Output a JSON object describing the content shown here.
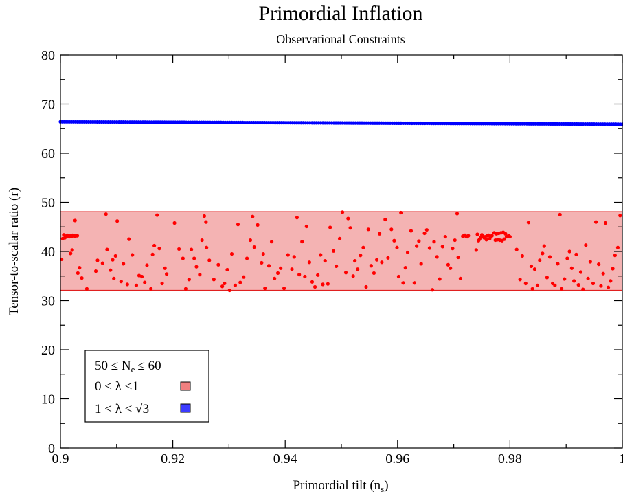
{
  "chart_data": {
    "type": "scatter",
    "title": "Primordial Inflation",
    "subtitle": "Observational Constraints",
    "xlabel": "Primordial tilt (n",
    "xlabel_sub": "s",
    "xlabel_close": ")",
    "ylabel": "Tensor-to-scalar ratio (r)",
    "xlim": [
      0.9,
      1.0
    ],
    "ylim": [
      0,
      80
    ],
    "x_ticks": [
      "0.9",
      "0.92",
      "0.94",
      "0.96",
      "0.98",
      "1"
    ],
    "x_tick_values": [
      0.9,
      0.92,
      0.94,
      0.96,
      0.98,
      1.0
    ],
    "y_ticks": [
      "0",
      "10",
      "20",
      "30",
      "40",
      "50",
      "60",
      "70",
      "80"
    ],
    "y_tick_values": [
      0,
      10,
      20,
      30,
      40,
      50,
      60,
      70,
      80
    ],
    "grid": false,
    "legend": {
      "placement": "bottom-left",
      "header": "50 ≤ N",
      "header_sub": "e",
      "header_tail": "≤ 60",
      "entries": [
        {
          "label": "0 < λ <1",
          "color": "#f08080"
        },
        {
          "label": "1 < λ < √3",
          "color": "#3b3bff"
        }
      ]
    },
    "band": {
      "y_min": 32.1,
      "y_max": 48.1,
      "x_min": 0.9,
      "x_max": 1.0,
      "fill": "#f4b3b3",
      "edge": "#e02020"
    },
    "series": [
      {
        "name": "0 < λ <1",
        "color": "#ff0000",
        "points": [
          [
            0.9002,
            38.4
          ],
          [
            0.9004,
            42.6
          ],
          [
            0.9006,
            43.4
          ],
          [
            0.9008,
            42.8
          ],
          [
            0.901,
            43.0
          ],
          [
            0.9012,
            43.3
          ],
          [
            0.9014,
            43.1
          ],
          [
            0.9016,
            43.0
          ],
          [
            0.9018,
            43.2
          ],
          [
            0.902,
            43.1
          ],
          [
            0.9022,
            43.3
          ],
          [
            0.9024,
            43.2
          ],
          [
            0.9026,
            43.1
          ],
          [
            0.9028,
            43.2
          ],
          [
            0.903,
            43.2
          ],
          [
            0.9018,
            39.6
          ],
          [
            0.9021,
            40.3
          ],
          [
            0.9026,
            46.3
          ],
          [
            0.9031,
            35.6
          ],
          [
            0.9034,
            36.7
          ],
          [
            0.9038,
            34.6
          ],
          [
            0.9047,
            32.4
          ],
          [
            0.9063,
            36.0
          ],
          [
            0.9066,
            38.2
          ],
          [
            0.9075,
            37.6
          ],
          [
            0.9081,
            47.6
          ],
          [
            0.9083,
            40.4
          ],
          [
            0.9089,
            36.2
          ],
          [
            0.9093,
            38.3
          ],
          [
            0.9095,
            34.5
          ],
          [
            0.9098,
            39.1
          ],
          [
            0.9101,
            46.2
          ],
          [
            0.9108,
            33.9
          ],
          [
            0.9112,
            37.5
          ],
          [
            0.9119,
            33.3
          ],
          [
            0.9122,
            42.5
          ],
          [
            0.9128,
            39.3
          ],
          [
            0.9135,
            33.1
          ],
          [
            0.914,
            35.1
          ],
          [
            0.9145,
            34.9
          ],
          [
            0.915,
            33.7
          ],
          [
            0.9154,
            37.2
          ],
          [
            0.9161,
            32.4
          ],
          [
            0.9164,
            39.4
          ],
          [
            0.9167,
            41.2
          ],
          [
            0.9172,
            47.4
          ],
          [
            0.9176,
            40.6
          ],
          [
            0.9181,
            33.5
          ],
          [
            0.9186,
            36.6
          ],
          [
            0.9189,
            35.4
          ],
          [
            0.9203,
            45.8
          ],
          [
            0.9211,
            40.5
          ],
          [
            0.9218,
            38.6
          ],
          [
            0.9223,
            32.4
          ],
          [
            0.9229,
            34.3
          ],
          [
            0.9233,
            40.4
          ],
          [
            0.9238,
            38.6
          ],
          [
            0.9242,
            36.9
          ],
          [
            0.9248,
            35.3
          ],
          [
            0.9252,
            42.3
          ],
          [
            0.9256,
            47.2
          ],
          [
            0.9259,
            46.0
          ],
          [
            0.926,
            40.8
          ],
          [
            0.9265,
            38.2
          ],
          [
            0.9273,
            34.3
          ],
          [
            0.9281,
            37.3
          ],
          [
            0.9288,
            32.9
          ],
          [
            0.9292,
            33.5
          ],
          [
            0.9297,
            36.3
          ],
          [
            0.9301,
            32.1
          ],
          [
            0.9305,
            39.5
          ],
          [
            0.9311,
            33.1
          ],
          [
            0.9316,
            45.5
          ],
          [
            0.932,
            33.7
          ],
          [
            0.9326,
            34.8
          ],
          [
            0.9332,
            38.6
          ],
          [
            0.9338,
            42.3
          ],
          [
            0.9342,
            47.1
          ],
          [
            0.9345,
            40.9
          ],
          [
            0.9351,
            45.4
          ],
          [
            0.9358,
            37.7
          ],
          [
            0.9361,
            39.5
          ],
          [
            0.9364,
            32.5
          ],
          [
            0.9371,
            37.1
          ],
          [
            0.9376,
            42.0
          ],
          [
            0.9381,
            34.5
          ],
          [
            0.9387,
            35.6
          ],
          [
            0.9392,
            36.6
          ],
          [
            0.9398,
            32.5
          ],
          [
            0.9405,
            39.3
          ],
          [
            0.9412,
            36.4
          ],
          [
            0.9416,
            38.9
          ],
          [
            0.9421,
            46.9
          ],
          [
            0.9425,
            35.3
          ],
          [
            0.943,
            42.0
          ],
          [
            0.9435,
            34.9
          ],
          [
            0.9438,
            45.1
          ],
          [
            0.9443,
            37.8
          ],
          [
            0.9448,
            33.8
          ],
          [
            0.9453,
            32.8
          ],
          [
            0.9458,
            35.2
          ],
          [
            0.9463,
            39.3
          ],
          [
            0.9467,
            33.3
          ],
          [
            0.9471,
            38.1
          ],
          [
            0.9476,
            33.4
          ],
          [
            0.948,
            44.9
          ],
          [
            0.9486,
            40.1
          ],
          [
            0.9491,
            37.0
          ],
          [
            0.9497,
            42.6
          ],
          [
            0.9502,
            48.0
          ],
          [
            0.9508,
            35.7
          ],
          [
            0.9512,
            46.7
          ],
          [
            0.9516,
            44.8
          ],
          [
            0.9521,
            35.0
          ],
          [
            0.9524,
            38.1
          ],
          [
            0.9529,
            36.4
          ],
          [
            0.9534,
            39.2
          ],
          [
            0.9539,
            40.8
          ],
          [
            0.9544,
            32.8
          ],
          [
            0.9548,
            44.5
          ],
          [
            0.9553,
            37.1
          ],
          [
            0.9558,
            35.6
          ],
          [
            0.9563,
            38.3
          ],
          [
            0.9568,
            43.6
          ],
          [
            0.9572,
            37.8
          ],
          [
            0.9578,
            46.5
          ],
          [
            0.9583,
            38.7
          ],
          [
            0.9589,
            44.5
          ],
          [
            0.9594,
            42.2
          ],
          [
            0.9599,
            40.8
          ],
          [
            0.9602,
            34.9
          ],
          [
            0.9606,
            47.9
          ],
          [
            0.961,
            33.6
          ],
          [
            0.9614,
            36.7
          ],
          [
            0.9618,
            39.8
          ],
          [
            0.9624,
            44.2
          ],
          [
            0.963,
            33.6
          ],
          [
            0.9634,
            41.1
          ],
          [
            0.9638,
            42.1
          ],
          [
            0.9642,
            37.5
          ],
          [
            0.9648,
            43.7
          ],
          [
            0.9652,
            44.4
          ],
          [
            0.9657,
            40.7
          ],
          [
            0.9662,
            32.2
          ],
          [
            0.9665,
            42.0
          ],
          [
            0.967,
            38.9
          ],
          [
            0.9675,
            34.4
          ],
          [
            0.968,
            41.0
          ],
          [
            0.9685,
            43.0
          ],
          [
            0.969,
            37.3
          ],
          [
            0.9694,
            36.6
          ],
          [
            0.9698,
            40.6
          ],
          [
            0.9702,
            42.3
          ],
          [
            0.9706,
            47.7
          ],
          [
            0.9708,
            38.8
          ],
          [
            0.9712,
            34.5
          ],
          [
            0.9716,
            43.1
          ],
          [
            0.9718,
            43.2
          ],
          [
            0.972,
            43.3
          ],
          [
            0.9722,
            43.1
          ],
          [
            0.9724,
            43.0
          ],
          [
            0.9726,
            43.2
          ],
          [
            0.974,
            40.3
          ],
          [
            0.9742,
            43.5
          ],
          [
            0.9744,
            42.2
          ],
          [
            0.9746,
            42.5
          ],
          [
            0.9748,
            42.9
          ],
          [
            0.975,
            43.4
          ],
          [
            0.9752,
            43.1
          ],
          [
            0.9754,
            42.8
          ],
          [
            0.9756,
            43.0
          ],
          [
            0.9758,
            42.4
          ],
          [
            0.976,
            43.2
          ],
          [
            0.9762,
            43.3
          ],
          [
            0.9764,
            42.6
          ],
          [
            0.9766,
            43.1
          ],
          [
            0.9768,
            43.2
          ],
          [
            0.9772,
            43.8
          ],
          [
            0.9774,
            42.3
          ],
          [
            0.9776,
            43.6
          ],
          [
            0.9778,
            42.4
          ],
          [
            0.978,
            43.7
          ],
          [
            0.9782,
            42.3
          ],
          [
            0.9784,
            43.8
          ],
          [
            0.9786,
            42.2
          ],
          [
            0.9788,
            43.9
          ],
          [
            0.979,
            42.5
          ],
          [
            0.9792,
            43.6
          ],
          [
            0.9794,
            43.0
          ],
          [
            0.9796,
            43.1
          ],
          [
            0.9798,
            43.2
          ],
          [
            0.98,
            43.0
          ],
          [
            0.9812,
            40.4
          ],
          [
            0.9818,
            34.3
          ],
          [
            0.9822,
            39.1
          ],
          [
            0.9828,
            33.5
          ],
          [
            0.9833,
            45.9
          ],
          [
            0.9838,
            37.0
          ],
          [
            0.984,
            32.4
          ],
          [
            0.9844,
            36.4
          ],
          [
            0.9849,
            33.1
          ],
          [
            0.9853,
            38.2
          ],
          [
            0.9858,
            39.6
          ],
          [
            0.9861,
            41.1
          ],
          [
            0.9866,
            34.7
          ],
          [
            0.9871,
            38.9
          ],
          [
            0.9876,
            33.5
          ],
          [
            0.988,
            33.1
          ],
          [
            0.9885,
            37.5
          ],
          [
            0.9889,
            47.5
          ],
          [
            0.9892,
            32.4
          ],
          [
            0.9897,
            34.4
          ],
          [
            0.9902,
            38.6
          ],
          [
            0.9906,
            40.0
          ],
          [
            0.991,
            36.6
          ],
          [
            0.9914,
            34.0
          ],
          [
            0.9918,
            39.4
          ],
          [
            0.9922,
            33.2
          ],
          [
            0.9926,
            35.8
          ],
          [
            0.993,
            32.3
          ],
          [
            0.9935,
            41.3
          ],
          [
            0.9939,
            34.5
          ],
          [
            0.9943,
            37.9
          ],
          [
            0.9948,
            33.5
          ],
          [
            0.9953,
            46.0
          ],
          [
            0.9958,
            37.4
          ],
          [
            0.9962,
            33.0
          ],
          [
            0.9966,
            35.5
          ],
          [
            0.997,
            45.8
          ],
          [
            0.9975,
            32.7
          ],
          [
            0.9979,
            34.0
          ],
          [
            0.9983,
            36.5
          ],
          [
            0.9987,
            39.2
          ],
          [
            0.9992,
            40.8
          ],
          [
            0.9996,
            47.3
          ]
        ]
      },
      {
        "name": "1 < λ < √3",
        "color": "#0000ff",
        "x_start": 0.9,
        "x_end": 1.0,
        "y_start": 66.4,
        "y_end": 65.9,
        "n_points": 260
      }
    ]
  }
}
